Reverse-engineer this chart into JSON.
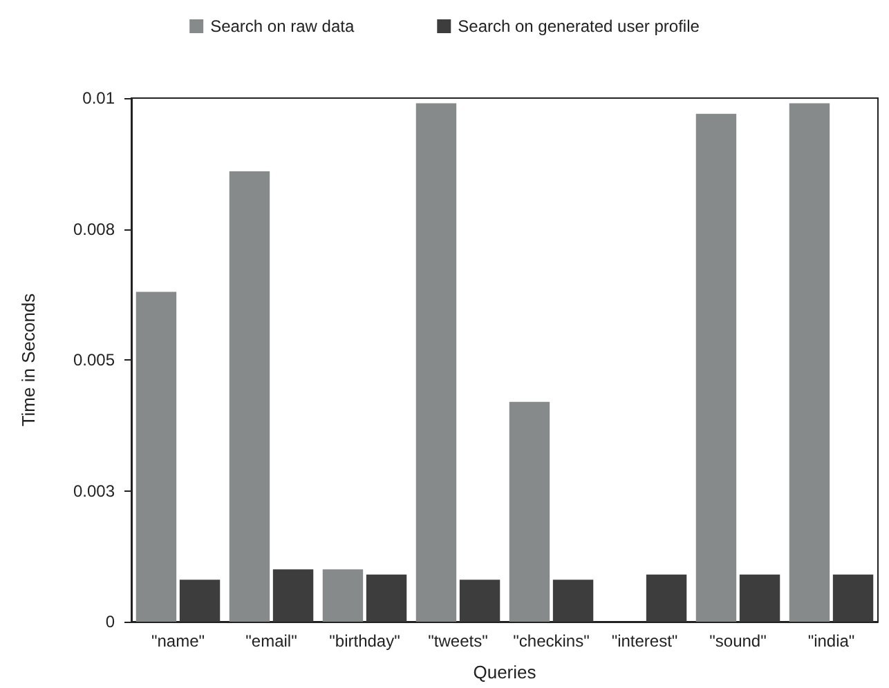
{
  "chart_data": {
    "type": "bar",
    "xlabel": "Queries",
    "ylabel": "Time in Seconds",
    "categories": [
      "\"name\"",
      "\"email\"",
      "\"birthday\"",
      "\"tweets\"",
      "\"checkins\"",
      "\"interest\"",
      "\"sound\"",
      "\"india\""
    ],
    "series": [
      {
        "name": "Search on raw data",
        "color": "#868a8a",
        "values": [
          0.0063,
          0.0086,
          0.001,
          0.0099,
          0.0042,
          0,
          0.0097,
          0.0099
        ]
      },
      {
        "name": "Search on generated user profile",
        "color": "#3d3d3d",
        "values": [
          0.0008,
          0.001,
          0.0009,
          0.0008,
          0.0008,
          0.0009,
          0.0009,
          0.0009
        ]
      }
    ],
    "ylim": [
      0,
      0.01
    ],
    "yticks": [
      0,
      {
        "value": 0.0025,
        "label": "0.003"
      },
      {
        "value": 0.005,
        "label": "0.005"
      },
      {
        "value": 0.0075,
        "label": "0.008"
      },
      {
        "value": 0.01,
        "label": "0.01"
      }
    ],
    "grid": false,
    "legend": "top"
  }
}
